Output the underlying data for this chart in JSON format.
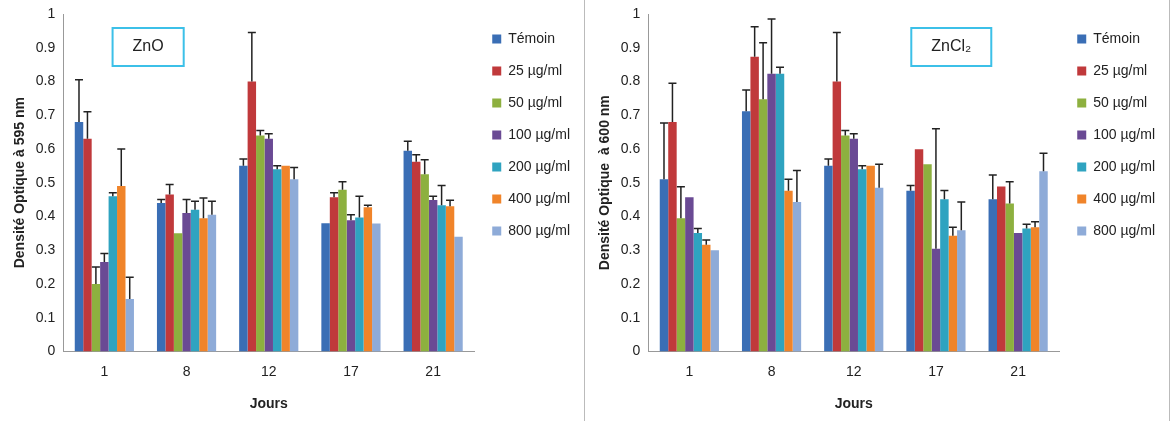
{
  "chart_data": [
    {
      "type": "bar",
      "categories": [
        "1",
        "8",
        "12",
        "17",
        "21"
      ],
      "xlabel": "Jours",
      "ylabel": "Densité Optique à 595 nm",
      "annotations": [
        "ZnO"
      ],
      "ylim": [
        0,
        1
      ],
      "yticks": [
        0,
        0.1,
        0.2,
        0.3,
        0.4,
        0.5,
        0.6,
        0.7,
        0.8,
        0.9,
        1
      ],
      "grid": false,
      "legend": "right",
      "series": [
        {
          "name": "Témoin",
          "color": "#3a6eb5",
          "values": [
            0.68,
            0.44,
            0.55,
            0.38,
            0.595
          ],
          "errors": [
            [
              0.68,
              0.805
            ],
            [
              0.44,
              0.45
            ],
            [
              0.55,
              0.57
            ],
            null,
            [
              0.595,
              0.623
            ]
          ]
        },
        {
          "name": "25 µg/ml",
          "color": "#c0393b",
          "values": [
            0.63,
            0.465,
            0.8,
            0.457,
            0.562
          ],
          "errors": [
            [
              0.63,
              0.71
            ],
            [
              0.465,
              0.495
            ],
            [
              0.8,
              0.945
            ],
            [
              0.457,
              0.47
            ],
            [
              0.562,
              0.583
            ]
          ]
        },
        {
          "name": "50 µg/ml",
          "color": "#8db03f",
          "values": [
            0.2,
            0.35,
            0.64,
            0.479,
            0.525
          ],
          "errors": [
            [
              0.2,
              0.25
            ],
            null,
            [
              0.64,
              0.655
            ],
            [
              0.479,
              0.503
            ],
            [
              0.525,
              0.568
            ]
          ]
        },
        {
          "name": "100 µg/ml",
          "color": "#6a4a94",
          "values": [
            0.265,
            0.41,
            0.63,
            0.389,
            0.449
          ],
          "errors": [
            [
              0.265,
              0.29
            ],
            [
              0.41,
              0.45
            ],
            [
              0.63,
              0.645
            ],
            [
              0.389,
              0.405
            ],
            [
              0.449,
              0.46
            ]
          ]
        },
        {
          "name": "200 µg/ml",
          "color": "#2fa3c0",
          "values": [
            0.46,
            0.42,
            0.54,
            0.397,
            0.433
          ],
          "errors": [
            [
              0.46,
              0.47
            ],
            [
              0.42,
              0.445
            ],
            [
              0.54,
              0.55
            ],
            [
              0.397,
              0.46
            ],
            [
              0.433,
              0.492
            ]
          ]
        },
        {
          "name": "400 µg/ml",
          "color": "#f0842a",
          "values": [
            0.49,
            0.395,
            0.55,
            0.427,
            0.43
          ],
          "errors": [
            [
              0.49,
              0.6
            ],
            [
              0.395,
              0.455
            ],
            null,
            [
              0.427,
              0.433
            ],
            [
              0.43,
              0.448
            ]
          ]
        },
        {
          "name": "800 µg/ml",
          "color": "#8eabd8",
          "values": [
            0.155,
            0.405,
            0.51,
            0.379,
            0.34
          ],
          "errors": [
            [
              0.155,
              0.22
            ],
            [
              0.405,
              0.445
            ],
            [
              0.51,
              0.545
            ],
            null,
            null
          ]
        }
      ]
    },
    {
      "type": "bar",
      "categories": [
        "1",
        "8",
        "12",
        "17",
        "21"
      ],
      "xlabel": "Jours",
      "ylabel": "Densité Optique  à 600 nm",
      "annotations": [
        "ZnCl₂"
      ],
      "ylim": [
        0,
        1
      ],
      "yticks": [
        0,
        0.1,
        0.2,
        0.3,
        0.4,
        0.5,
        0.6,
        0.7,
        0.8,
        0.9,
        1
      ],
      "grid": false,
      "legend": "right",
      "series": [
        {
          "name": "Témoin",
          "color": "#3a6eb5",
          "values": [
            0.51,
            0.712,
            0.55,
            0.476,
            0.451
          ],
          "errors": [
            [
              0.51,
              0.677
            ],
            [
              0.712,
              0.775
            ],
            [
              0.55,
              0.57
            ],
            [
              0.476,
              0.492
            ],
            [
              0.451,
              0.523
            ]
          ]
        },
        {
          "name": "25 µg/ml",
          "color": "#c0393b",
          "values": [
            0.68,
            0.873,
            0.8,
            0.599,
            0.489
          ],
          "errors": [
            [
              0.68,
              0.795
            ],
            [
              0.873,
              0.962
            ],
            [
              0.8,
              0.945
            ],
            null,
            null
          ]
        },
        {
          "name": "50 µg/ml",
          "color": "#8db03f",
          "values": [
            0.395,
            0.747,
            0.64,
            0.555,
            0.438
          ],
          "errors": [
            [
              0.395,
              0.488
            ],
            [
              0.747,
              0.915
            ],
            [
              0.64,
              0.655
            ],
            null,
            [
              0.438,
              0.503
            ]
          ]
        },
        {
          "name": "100 µg/ml",
          "color": "#6a4a94",
          "values": [
            0.457,
            0.823,
            0.63,
            0.304,
            0.351
          ],
          "errors": [
            null,
            [
              0.823,
              0.985
            ],
            [
              0.63,
              0.645
            ],
            [
              0.304,
              0.66
            ],
            null
          ]
        },
        {
          "name": "200 µg/ml",
          "color": "#2fa3c0",
          "values": [
            0.351,
            0.823,
            0.54,
            0.451,
            0.364
          ],
          "errors": [
            [
              0.351,
              0.364
            ],
            [
              0.823,
              0.842
            ],
            [
              0.54,
              0.55
            ],
            [
              0.451,
              0.477
            ],
            [
              0.364,
              0.377
            ]
          ]
        },
        {
          "name": "400 µg/ml",
          "color": "#f0842a",
          "values": [
            0.316,
            0.476,
            0.55,
            0.343,
            0.368
          ],
          "errors": [
            [
              0.316,
              0.33
            ],
            [
              0.476,
              0.51
            ],
            null,
            [
              0.343,
              0.368
            ],
            [
              0.368,
              0.384
            ]
          ]
        },
        {
          "name": "800 µg/ml",
          "color": "#8eabd8",
          "values": [
            0.3,
            0.443,
            0.485,
            0.359,
            0.534
          ],
          "errors": [
            null,
            [
              0.443,
              0.536
            ],
            [
              0.485,
              0.555
            ],
            [
              0.359,
              0.443
            ],
            [
              0.534,
              0.587
            ]
          ]
        }
      ]
    }
  ]
}
